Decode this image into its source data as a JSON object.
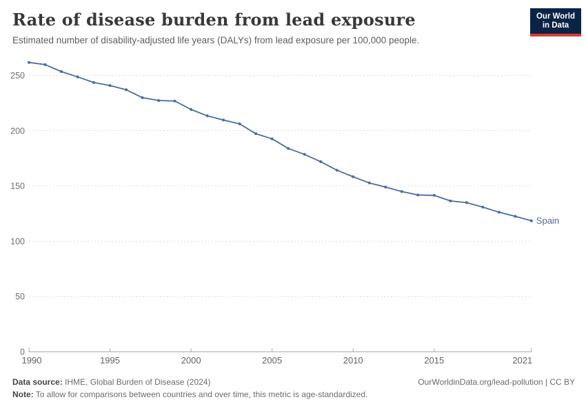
{
  "header": {
    "title": "Rate of disease burden from lead exposure",
    "subtitle": "Estimated number of disability-adjusted life years (DALYs) from lead exposure per 100,000 people.",
    "logo": {
      "line1": "Our World",
      "line2": "in Data",
      "bg_color": "#0b2446",
      "accent_color": "#dc3b2e"
    }
  },
  "chart_data": {
    "type": "line",
    "title": "Rate of disease burden from lead exposure",
    "subtitle": "Estimated number of disability-adjusted life years (DALYs) from lead exposure per 100,000 people.",
    "x": [
      1990,
      1991,
      1992,
      1993,
      1994,
      1995,
      1996,
      1997,
      1998,
      1999,
      2000,
      2001,
      2002,
      2003,
      2004,
      2005,
      2006,
      2007,
      2008,
      2009,
      2010,
      2011,
      2012,
      2013,
      2014,
      2015,
      2016,
      2017,
      2018,
      2019,
      2020,
      2021
    ],
    "series": [
      {
        "name": "Spain",
        "color": "#4c6a9c",
        "values": [
          261.7,
          259.7,
          253.4,
          248.6,
          243.5,
          240.8,
          237.0,
          229.8,
          227.3,
          226.8,
          219.2,
          213.4,
          209.6,
          206.1,
          197.2,
          192.6,
          183.9,
          178.5,
          171.9,
          164.2,
          158.3,
          152.7,
          149.0,
          144.9,
          141.8,
          141.5,
          136.4,
          134.9,
          130.8,
          126.2,
          122.5,
          118.5
        ]
      }
    ],
    "xlabel": "",
    "ylabel": "",
    "xlim": [
      1990,
      2021
    ],
    "ylim": [
      0,
      265
    ],
    "x_tick_labels": [
      "1990",
      "1995",
      "2000",
      "2005",
      "2010",
      "2015",
      "2021"
    ],
    "x_tick_years": [
      1990,
      1995,
      2000,
      2005,
      2010,
      2015,
      2021
    ],
    "y_ticks": [
      0,
      50,
      100,
      150,
      200,
      250
    ],
    "grid": "horizontal-dashed",
    "legend": "end-of-line-label",
    "grid_color": "#dcdcdc",
    "axis_color": "#a3a3a3",
    "tick_label_color": "#616161"
  },
  "footer": {
    "source_label": "Data source:",
    "source_text": " IHME, Global Burden of Disease (2024)",
    "link_text": "OurWorldinData.org/lead-pollution | CC BY",
    "note_label": "Note:",
    "note_text": " To allow for comparisons between countries and over time, this metric is age-standardized."
  }
}
